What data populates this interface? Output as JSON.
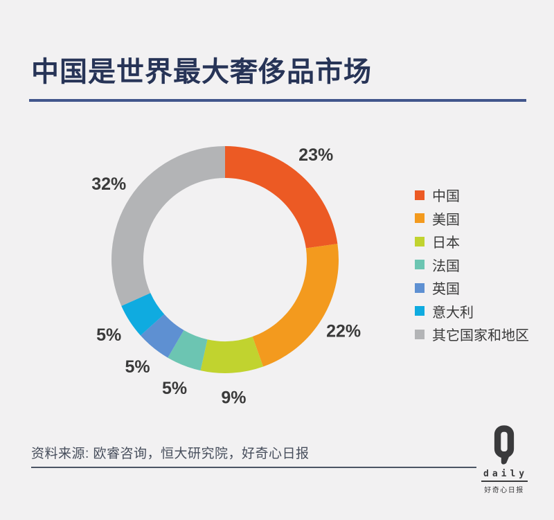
{
  "header": {
    "title": "中国是世界最大奢侈品市场"
  },
  "chart_data": {
    "type": "pie",
    "subtype": "donut",
    "title": "中国是世界最大奢侈品市场",
    "categories": [
      "中国",
      "美国",
      "日本",
      "法国",
      "英国",
      "意大利",
      "其它国家和地区"
    ],
    "values": [
      23,
      22,
      9,
      5,
      5,
      5,
      32
    ],
    "labels": [
      "23%",
      "22%",
      "9%",
      "5%",
      "5%",
      "5%",
      "32%"
    ],
    "colors": [
      "#ec5a24",
      "#f39a1e",
      "#c1d32f",
      "#6cc5b2",
      "#5e90d2",
      "#0fabe0",
      "#b3b4b6"
    ],
    "unit": "percent",
    "start_angle_deg": 0,
    "direction": "clockwise",
    "outer_radius": 164,
    "inner_radius": 118,
    "label_radius": 200,
    "label_color": "#3a3a3a",
    "legend_position": "right"
  },
  "footer": {
    "source": "资料来源: 欧睿咨询，恒大研究院，好奇心日报"
  },
  "logo": {
    "q": "Q",
    "daily": "daily",
    "caption": "好奇心日报"
  }
}
